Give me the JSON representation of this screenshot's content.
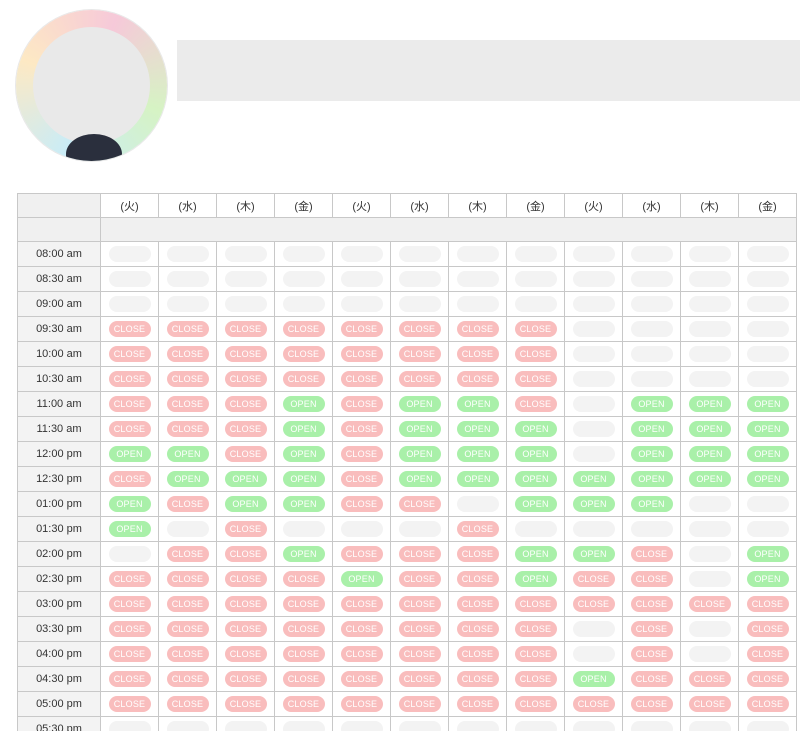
{
  "days": [
    "(火)",
    "(水)",
    "(木)",
    "(金)",
    "(火)",
    "(水)",
    "(木)",
    "(金)",
    "(火)",
    "(水)",
    "(木)",
    "(金)"
  ],
  "labels": {
    "open": "OPEN",
    "close": "CLOSE"
  },
  "colors": {
    "open": "#a9f0a9",
    "close": "#f9bdbd",
    "empty": "#f3f3f3"
  },
  "rows": [
    {
      "time": "08:00 am",
      "slots": [
        "E",
        "E",
        "E",
        "E",
        "E",
        "E",
        "E",
        "E",
        "E",
        "E",
        "E",
        "E"
      ]
    },
    {
      "time": "08:30 am",
      "slots": [
        "E",
        "E",
        "E",
        "E",
        "E",
        "E",
        "E",
        "E",
        "E",
        "E",
        "E",
        "E"
      ]
    },
    {
      "time": "09:00 am",
      "slots": [
        "E",
        "E",
        "E",
        "E",
        "E",
        "E",
        "E",
        "E",
        "E",
        "E",
        "E",
        "E"
      ]
    },
    {
      "time": "09:30 am",
      "slots": [
        "C",
        "C",
        "C",
        "C",
        "C",
        "C",
        "C",
        "C",
        "E",
        "E",
        "E",
        "E"
      ]
    },
    {
      "time": "10:00 am",
      "slots": [
        "C",
        "C",
        "C",
        "C",
        "C",
        "C",
        "C",
        "C",
        "E",
        "E",
        "E",
        "E"
      ]
    },
    {
      "time": "10:30 am",
      "slots": [
        "C",
        "C",
        "C",
        "C",
        "C",
        "C",
        "C",
        "C",
        "E",
        "E",
        "E",
        "E"
      ]
    },
    {
      "time": "11:00 am",
      "slots": [
        "C",
        "C",
        "C",
        "O",
        "C",
        "O",
        "O",
        "C",
        "E",
        "O",
        "O",
        "O"
      ]
    },
    {
      "time": "11:30 am",
      "slots": [
        "C",
        "C",
        "C",
        "O",
        "C",
        "O",
        "O",
        "O",
        "E",
        "O",
        "O",
        "O"
      ]
    },
    {
      "time": "12:00 pm",
      "slots": [
        "O",
        "O",
        "C",
        "O",
        "C",
        "O",
        "O",
        "O",
        "E",
        "O",
        "O",
        "O"
      ]
    },
    {
      "time": "12:30 pm",
      "slots": [
        "C",
        "O",
        "O",
        "O",
        "C",
        "O",
        "O",
        "O",
        "O",
        "O",
        "O",
        "O"
      ]
    },
    {
      "time": "01:00 pm",
      "slots": [
        "O",
        "C",
        "O",
        "O",
        "C",
        "C",
        "E",
        "O",
        "O",
        "O",
        "E",
        "E"
      ]
    },
    {
      "time": "01:30 pm",
      "slots": [
        "O",
        "E",
        "C",
        "E",
        "E",
        "E",
        "C",
        "E",
        "E",
        "E",
        "E",
        "E"
      ]
    },
    {
      "time": "02:00 pm",
      "slots": [
        "E",
        "C",
        "C",
        "O",
        "C",
        "C",
        "C",
        "O",
        "O",
        "C",
        "E",
        "O"
      ]
    },
    {
      "time": "02:30 pm",
      "slots": [
        "C",
        "C",
        "C",
        "C",
        "O",
        "C",
        "C",
        "O",
        "C",
        "C",
        "E",
        "O"
      ]
    },
    {
      "time": "03:00 pm",
      "slots": [
        "C",
        "C",
        "C",
        "C",
        "C",
        "C",
        "C",
        "C",
        "C",
        "C",
        "C",
        "C"
      ]
    },
    {
      "time": "03:30 pm",
      "slots": [
        "C",
        "C",
        "C",
        "C",
        "C",
        "C",
        "C",
        "C",
        "E",
        "C",
        "E",
        "C"
      ]
    },
    {
      "time": "04:00 pm",
      "slots": [
        "C",
        "C",
        "C",
        "C",
        "C",
        "C",
        "C",
        "C",
        "E",
        "C",
        "E",
        "C"
      ]
    },
    {
      "time": "04:30 pm",
      "slots": [
        "C",
        "C",
        "C",
        "C",
        "C",
        "C",
        "C",
        "C",
        "O",
        "C",
        "C",
        "C"
      ]
    },
    {
      "time": "05:00 pm",
      "slots": [
        "C",
        "C",
        "C",
        "C",
        "C",
        "C",
        "C",
        "C",
        "C",
        "C",
        "C",
        "C"
      ]
    },
    {
      "time": "05:30 pm",
      "slots": [
        "E",
        "E",
        "E",
        "E",
        "E",
        "E",
        "E",
        "E",
        "E",
        "E",
        "E",
        "E"
      ]
    }
  ]
}
